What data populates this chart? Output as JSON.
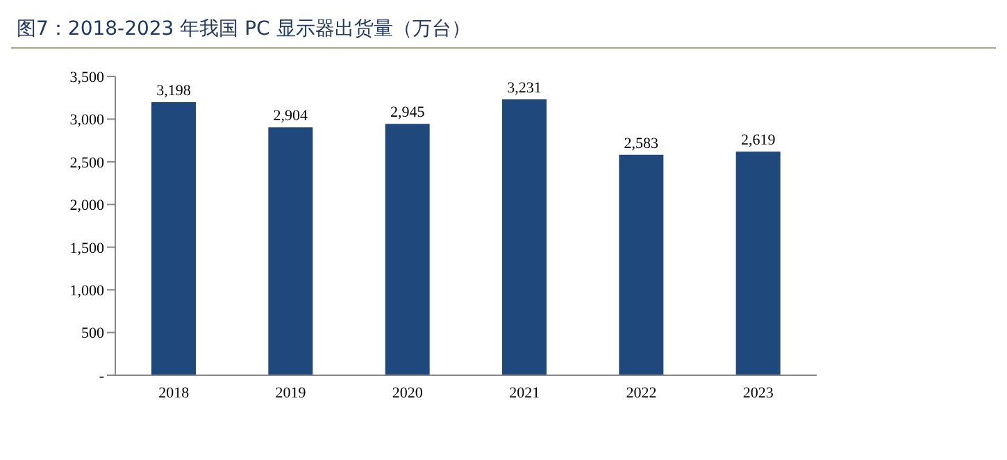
{
  "chart_data": {
    "type": "bar",
    "title": "图7：2018-2023 年我国 PC 显示器出货量（万台）",
    "categories": [
      "2018",
      "2019",
      "2020",
      "2021",
      "2022",
      "2023"
    ],
    "values": [
      3198,
      2904,
      2945,
      3231,
      2583,
      2619
    ],
    "color": "#1f497d",
    "ylim": [
      0,
      3500
    ],
    "yticks": [
      {
        "value": 0,
        "label": "-"
      },
      {
        "value": 500,
        "label": "500"
      },
      {
        "value": 1000,
        "label": "1,000"
      },
      {
        "value": 1500,
        "label": "1,500"
      },
      {
        "value": 2000,
        "label": "2,000"
      },
      {
        "value": 2500,
        "label": "2,500"
      },
      {
        "value": 3000,
        "label": "3,000"
      },
      {
        "value": 3500,
        "label": "3,500"
      }
    ],
    "value_labels": [
      "3,198",
      "2,904",
      "2,945",
      "3,231",
      "2,583",
      "2,619"
    ],
    "grid": false,
    "legend": false
  }
}
